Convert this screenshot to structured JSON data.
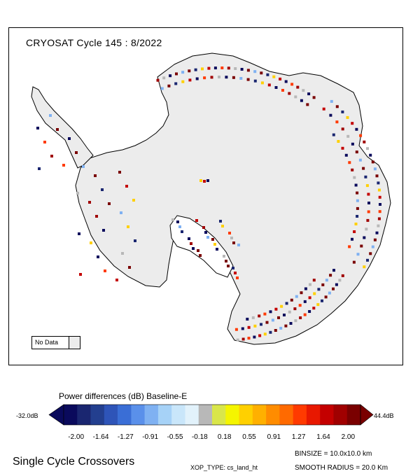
{
  "map": {
    "title": "CRYOSAT Cycle 145 : 8/2022",
    "no_data_label": "No Data",
    "no_data_color": "#ececec",
    "continent_fill": "#ececec",
    "coast_color": "#000000"
  },
  "legend": {
    "title": "Power differences (dB) Baseline-E",
    "min_label": "-32.0dB",
    "max_label": "44.4dB",
    "ticks": [
      "-2.00",
      "-1.64",
      "-1.27",
      "-0.91",
      "-0.55",
      "-0.18",
      "0.18",
      "0.55",
      "0.91",
      "1.27",
      "1.64",
      "2.00"
    ],
    "colors": [
      "#0a0a5c",
      "#1a2670",
      "#233f8f",
      "#2e54b8",
      "#3a6ed6",
      "#5a90ea",
      "#7fb1f2",
      "#a6d2f7",
      "#c9e6fa",
      "#e2f2fb",
      "#b8b8b8",
      "#d9e64a",
      "#f5f500",
      "#ffd000",
      "#ffb000",
      "#ff8c00",
      "#ff6a00",
      "#ff3a00",
      "#e81800",
      "#c40000",
      "#a00000",
      "#7a0000"
    ]
  },
  "footer": {
    "title": "Single Cycle Crossovers",
    "binsize": "BINSIZE = 10.0x10.0 km",
    "xop_type": "XOP_TYPE: cs_land_ht",
    "smooth_radius": "SMOOTH RADIUS =  20.0 Km"
  }
}
